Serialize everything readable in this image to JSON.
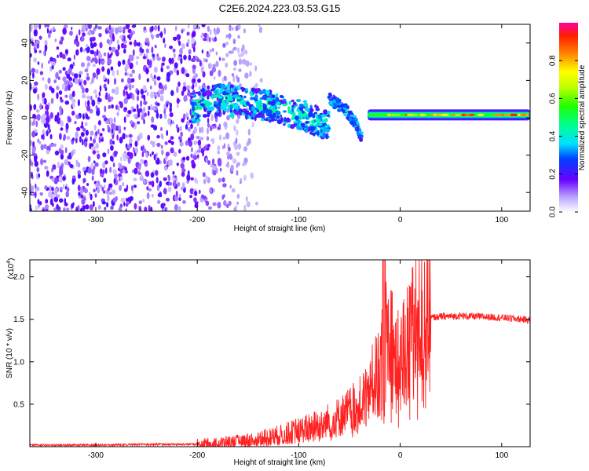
{
  "title": "C2E6.2024.223.03.53.G15",
  "chart_data": [
    {
      "type": "heatmap",
      "name": "spectrogram",
      "xlabel": "Height of straight line (km)",
      "ylabel": "Frequency (Hz)",
      "xlim": [
        -365,
        128
      ],
      "ylim": [
        -50,
        50
      ],
      "xticks": [
        -300,
        -200,
        -100,
        0,
        100
      ],
      "xtick_labels": [
        "-300",
        "-200",
        "-100",
        "0",
        "100"
      ],
      "yticks": [
        -40,
        -20,
        0,
        20,
        40
      ],
      "ytick_labels": [
        "-40",
        "-20",
        "0",
        "20",
        "40"
      ],
      "colorbar": {
        "label": "Normalized spectral amplitude",
        "range": [
          0,
          1
        ],
        "ticks": [
          0.0,
          0.2,
          0.4,
          0.6,
          0.8
        ],
        "tick_labels": [
          "0.0",
          "0.2",
          "0.4",
          "0.6",
          "0.8"
        ]
      },
      "features": {
        "noise_region_x": [
          -365,
          -160
        ],
        "signal_track": [
          {
            "x": -205,
            "f": 5
          },
          {
            "x": -180,
            "f": 10
          },
          {
            "x": -150,
            "f": 8
          },
          {
            "x": -120,
            "f": 5
          },
          {
            "x": -100,
            "f": 2
          },
          {
            "x": -80,
            "f": -2
          },
          {
            "x": -70,
            "f": -5
          }
        ],
        "secondary_track": [
          {
            "x": -70,
            "f": 10
          },
          {
            "x": -55,
            "f": 5
          },
          {
            "x": -45,
            "f": -2
          },
          {
            "x": -38,
            "f": -10
          }
        ],
        "tone_line": {
          "x_start": -32,
          "x_end": 128,
          "f": 1.5,
          "peak_amplitude": 0.95
        }
      }
    },
    {
      "type": "line",
      "name": "snr",
      "xlabel": "Height of straight line (km)",
      "ylabel": "SNR (10 * v/v)",
      "scale_label": "(x10",
      "scale_exponent": "4",
      "scale_suffix": ")",
      "xlim": [
        -365,
        128
      ],
      "ylim": [
        0,
        2.2
      ],
      "xticks": [
        -300,
        -200,
        -100,
        0,
        100
      ],
      "xtick_labels": [
        "-300",
        "-200",
        "-100",
        "0",
        "100"
      ],
      "yticks": [
        0.5,
        1.0,
        1.5,
        2.0
      ],
      "ytick_labels": [
        "0.5",
        "1.0",
        "1.5",
        "2.0"
      ],
      "series": [
        {
          "name": "SNR",
          "color": "#ff2020",
          "x": [
            -365,
            -300,
            -250,
            -200,
            -180,
            -160,
            -140,
            -120,
            -100,
            -80,
            -60,
            -40,
            -30,
            -20,
            -15,
            -10,
            -5,
            0,
            5,
            10,
            15,
            20,
            30,
            40,
            60,
            80,
            100,
            120,
            128
          ],
          "y": [
            0.02,
            0.02,
            0.03,
            0.03,
            0.04,
            0.06,
            0.09,
            0.13,
            0.19,
            0.26,
            0.35,
            0.5,
            0.7,
            0.9,
            1.2,
            1.45,
            0.95,
            1.05,
            1.2,
            1.33,
            1.4,
            1.48,
            1.52,
            1.53,
            1.54,
            1.53,
            1.52,
            1.5,
            1.49
          ]
        }
      ],
      "spikes": [
        {
          "x": -17,
          "y": 2.3
        },
        {
          "x": -15,
          "y": 2.2
        },
        {
          "x": 10,
          "y": 1.88
        }
      ]
    }
  ],
  "colors": {
    "signal": "#ff2020",
    "noise": "#6a00ff",
    "background": "#ffffff"
  }
}
